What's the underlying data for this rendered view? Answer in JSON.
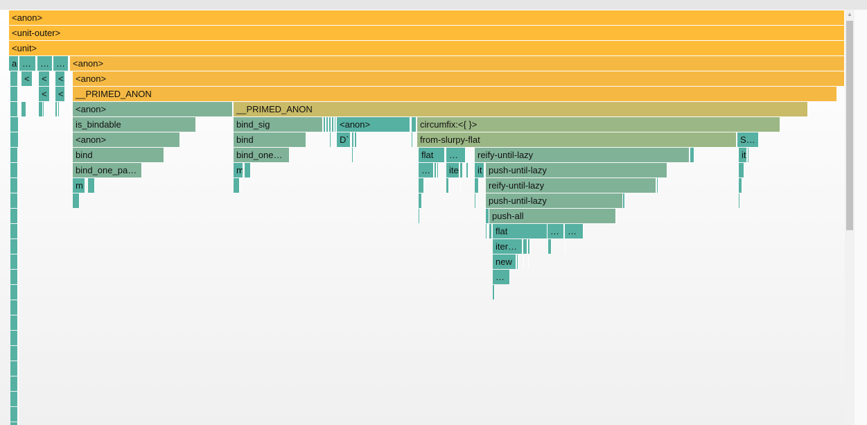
{
  "colors": {
    "orange": "#fdbb37",
    "orange2": "#f5b943",
    "olive": "#c9bb67",
    "sage": "#9bb785",
    "green": "#80b298",
    "teal": "#56b1a2",
    "teal2": "#3cafa2"
  },
  "scrollbar": {
    "up_arrow": "▲"
  },
  "flame": [
    {
      "label": "<anon>",
      "color": "orange"
    },
    {
      "label": "<unit-outer>",
      "color": "orange"
    },
    {
      "label": "<unit>",
      "color": "orange"
    },
    {
      "label": "a",
      "color": "teal"
    },
    {
      "label": "…",
      "color": "teal"
    },
    {
      "label": "…",
      "color": "teal"
    },
    {
      "label": "…",
      "color": "teal"
    },
    {
      "label": "<anon>",
      "color": "orange2"
    },
    {
      "label": "<",
      "color": "teal"
    },
    {
      "label": "<",
      "color": "teal"
    },
    {
      "label": "<.",
      "color": "teal"
    },
    {
      "label": "<anon>",
      "color": "orange2"
    },
    {
      "label": "<",
      "color": "teal"
    },
    {
      "label": "<",
      "color": "teal"
    },
    {
      "label": "__PRIMED_ANON",
      "color": "orange2"
    },
    {
      "label": "<anon>",
      "color": "green"
    },
    {
      "label": "__PRIMED_ANON",
      "color": "olive"
    },
    {
      "label": "is_bindable",
      "color": "green"
    },
    {
      "label": "bind_sig",
      "color": "green"
    },
    {
      "label": "<anon>",
      "color": "teal"
    },
    {
      "label": "circumfix:<{ }>",
      "color": "sage"
    },
    {
      "label": "<anon>",
      "color": "green"
    },
    {
      "label": "bind",
      "color": "green"
    },
    {
      "label": "D`",
      "color": "teal"
    },
    {
      "label": "from-slurpy-flat",
      "color": "sage"
    },
    {
      "label": "S…",
      "color": "teal"
    },
    {
      "label": "bind",
      "color": "green"
    },
    {
      "label": "bind_one…",
      "color": "green"
    },
    {
      "label": "flat",
      "color": "teal"
    },
    {
      "label": "…",
      "color": "teal"
    },
    {
      "label": "reify-until-lazy",
      "color": "green"
    },
    {
      "label": "it",
      "color": "teal"
    },
    {
      "label": "bind_one_pa…",
      "color": "green"
    },
    {
      "label": "m",
      "color": "teal"
    },
    {
      "label": "…",
      "color": "teal"
    },
    {
      "label": "ite",
      "color": "teal"
    },
    {
      "label": "it",
      "color": "teal"
    },
    {
      "label": "push-until-lazy",
      "color": "green"
    },
    {
      "label": "m",
      "color": "teal"
    },
    {
      "label": "reify-until-lazy",
      "color": "green"
    },
    {
      "label": "push-until-lazy",
      "color": "green"
    },
    {
      "label": "push-all",
      "color": "green"
    },
    {
      "label": "flat",
      "color": "teal"
    },
    {
      "label": "…",
      "color": "teal"
    },
    {
      "label": "…",
      "color": "teal"
    },
    {
      "label": "iter…",
      "color": "teal"
    },
    {
      "label": "new",
      "color": "teal"
    },
    {
      "label": "…",
      "color": "teal"
    }
  ],
  "slivers": [
    {
      "color": "teal"
    },
    {
      "color": "teal"
    },
    {
      "color": "teal"
    },
    {
      "color": "teal"
    },
    {
      "color": "teal"
    },
    {
      "color": "teal"
    },
    {
      "color": "teal"
    },
    {
      "color": "teal"
    },
    {
      "color": "teal"
    },
    {
      "color": "teal"
    },
    {
      "color": "teal"
    },
    {
      "color": "teal"
    },
    {
      "color": "teal"
    },
    {
      "color": "teal"
    },
    {
      "color": "teal"
    },
    {
      "color": "teal"
    },
    {
      "color": "teal"
    },
    {
      "color": "teal"
    },
    {
      "color": "teal"
    },
    {
      "color": "teal"
    },
    {
      "color": "teal"
    },
    {
      "color": "teal"
    },
    {
      "color": "teal"
    },
    {
      "color": "teal"
    },
    {
      "color": "teal"
    },
    {
      "color": "teal"
    },
    {
      "color": "teal"
    },
    {
      "color": "teal"
    },
    {
      "color": "teal"
    },
    {
      "color": "teal"
    },
    {
      "color": "teal"
    },
    {
      "color": "teal"
    },
    {
      "color": "teal"
    },
    {
      "color": "teal"
    },
    {
      "color": "teal"
    },
    {
      "color": "teal"
    },
    {
      "color": "teal"
    },
    {
      "color": "teal"
    },
    {
      "color": "teal"
    },
    {
      "color": "teal"
    },
    {
      "color": "teal"
    },
    {
      "color": "teal"
    },
    {
      "color": "teal"
    },
    {
      "color": "teal"
    },
    {
      "color": "teal"
    },
    {
      "color": "teal"
    },
    {
      "color": "teal"
    },
    {
      "color": "teal"
    },
    {
      "color": "teal"
    },
    {
      "color": "teal"
    },
    {
      "color": "teal"
    },
    {
      "color": "teal"
    },
    {
      "color": "teal"
    },
    {
      "color": "teal"
    },
    {
      "color": "teal"
    },
    {
      "color": "teal"
    },
    {
      "color": "teal"
    },
    {
      "color": "teal"
    },
    {
      "color": "teal"
    },
    {
      "color": "teal"
    },
    {
      "color": "teal"
    },
    {
      "color": "teal"
    },
    {
      "color": "teal"
    },
    {
      "color": "teal"
    },
    {
      "color": "teal"
    },
    {
      "color": "teal"
    },
    {
      "color": "teal"
    },
    {
      "color": "teal"
    },
    {
      "color": "teal"
    },
    {
      "color": "teal"
    },
    {
      "color": "teal"
    },
    {
      "color": "teal"
    },
    {
      "color": "teal"
    },
    {
      "color": "teal"
    },
    {
      "color": "teal"
    },
    {
      "color": "teal"
    },
    {
      "color": "teal"
    },
    {
      "color": "teal"
    },
    {
      "color": "teal"
    },
    {
      "color": "teal"
    },
    {
      "color": "teal"
    },
    {
      "color": "teal"
    },
    {
      "color": "teal"
    },
    {
      "color": "teal"
    },
    {
      "color": "teal"
    },
    {
      "color": "teal"
    },
    {
      "color": "teal"
    },
    {
      "color": "teal"
    },
    {
      "color": "teal"
    },
    {
      "color": "teal"
    },
    {
      "color": "teal"
    },
    {
      "color": "teal"
    },
    {
      "color": "teal"
    },
    {
      "color": "teal"
    },
    {
      "color": "teal"
    },
    {
      "color": "teal"
    },
    {
      "color": "teal"
    },
    {
      "color": "teal"
    },
    {
      "color": "teal"
    },
    {
      "color": "teal"
    },
    {
      "color": "teal"
    },
    {
      "color": "teal"
    },
    {
      "color": "teal"
    },
    {
      "color": "teal"
    },
    {
      "color": "teal"
    }
  ]
}
